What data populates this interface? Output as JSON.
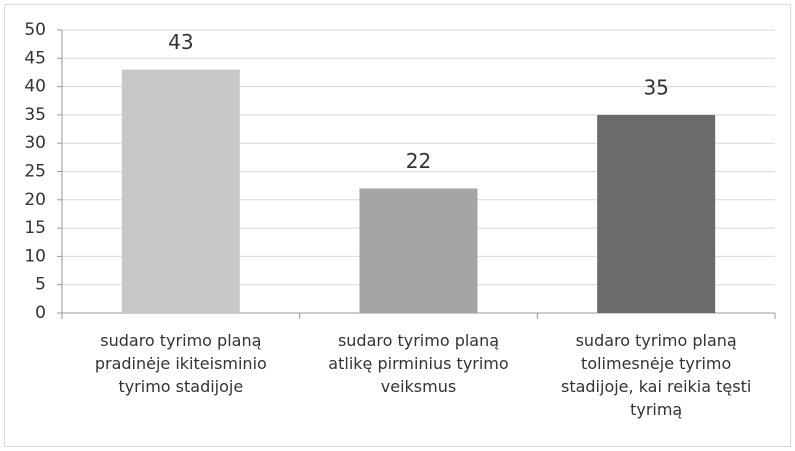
{
  "chart_data": {
    "type": "bar",
    "categories": [
      "sudaro tyrimo planą pradinėje ikiteisminio tyrimo stadijoje",
      "sudaro tyrimo planą atlikę pirminius tyrimo veiksmus",
      "sudaro tyrimo planą tolimesnėje tyrimo stadijoje, kai reikia tęsti tyrimą"
    ],
    "values": [
      43,
      22,
      35
    ],
    "colors": [
      "#c8c8c8",
      "#a5a5a5",
      "#6b6b6b"
    ],
    "ylim": [
      0,
      50
    ],
    "yticks": [
      0,
      5,
      10,
      15,
      20,
      25,
      30,
      35,
      40,
      45,
      50
    ],
    "grid": true
  }
}
